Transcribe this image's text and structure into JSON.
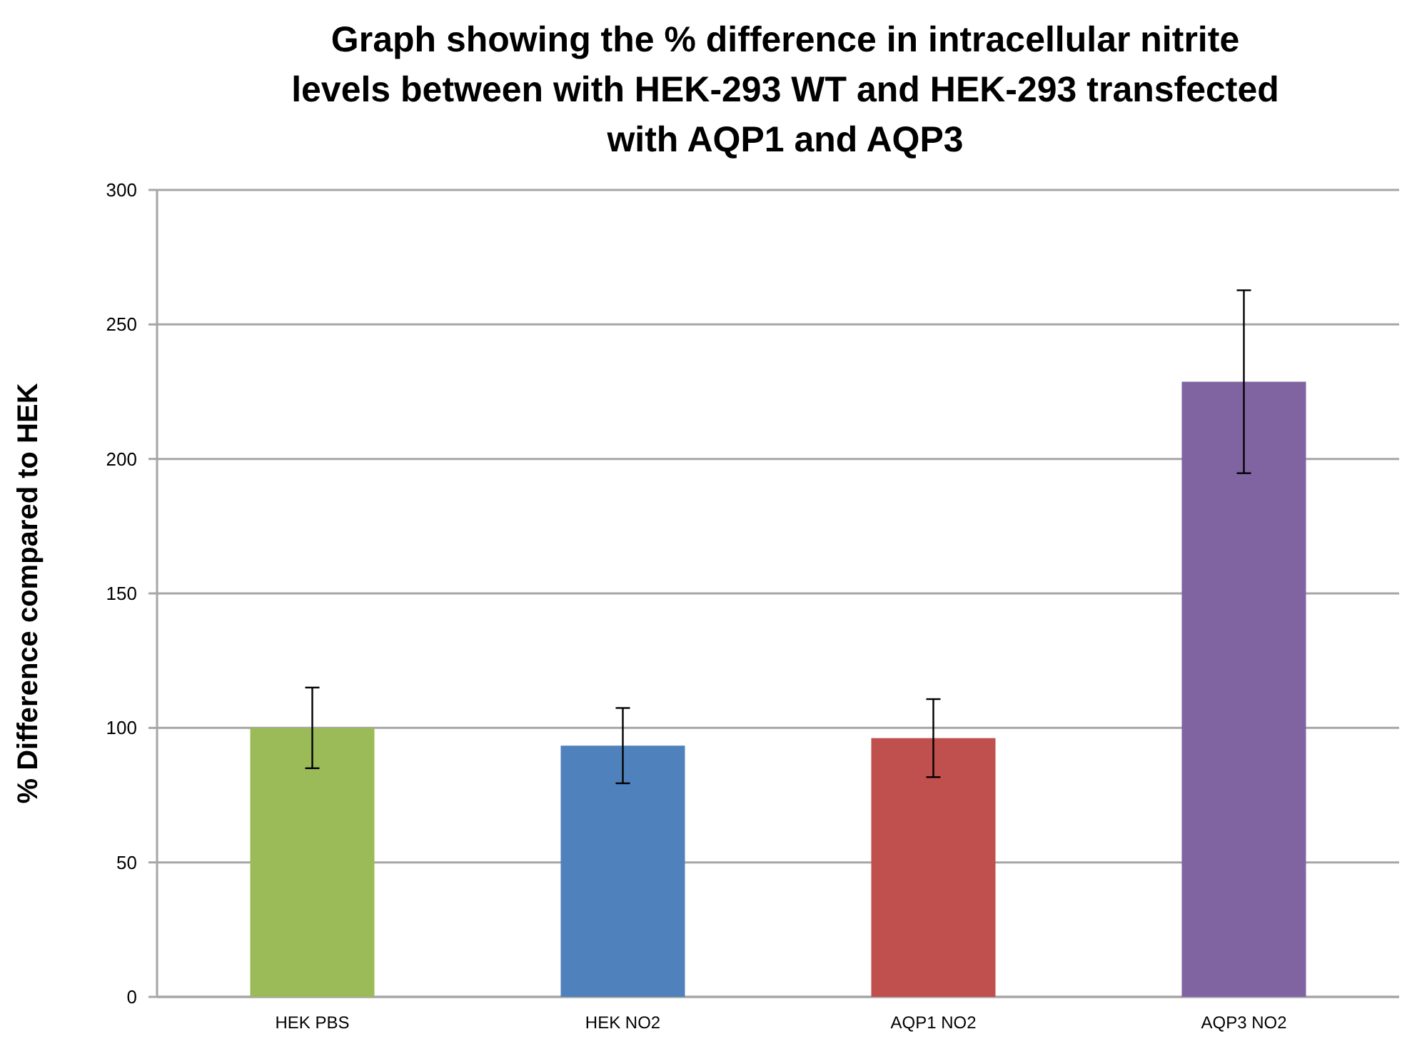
{
  "chart_data": {
    "type": "bar",
    "title": "Graph showing the % difference in intracellular nitrite levels between with HEK-293 WT and HEK-293 transfected with AQP1 and AQP3",
    "ylabel": "% Difference compared to HEK",
    "categories": [
      "HEK PBS",
      "HEK NO2",
      "AQP1 NO2",
      "AQP3 NO2"
    ],
    "values": [
      100,
      93.4,
      96.2,
      228.7
    ],
    "colors": [
      "#9bbb59",
      "#4f81bd",
      "#c0504d",
      "#8064a2"
    ],
    "errors": [
      15,
      14,
      14.5,
      34
    ],
    "ylim": [
      0,
      300
    ],
    "yticks": [
      0,
      50,
      100,
      150,
      200,
      250,
      300
    ],
    "grid": "y"
  }
}
